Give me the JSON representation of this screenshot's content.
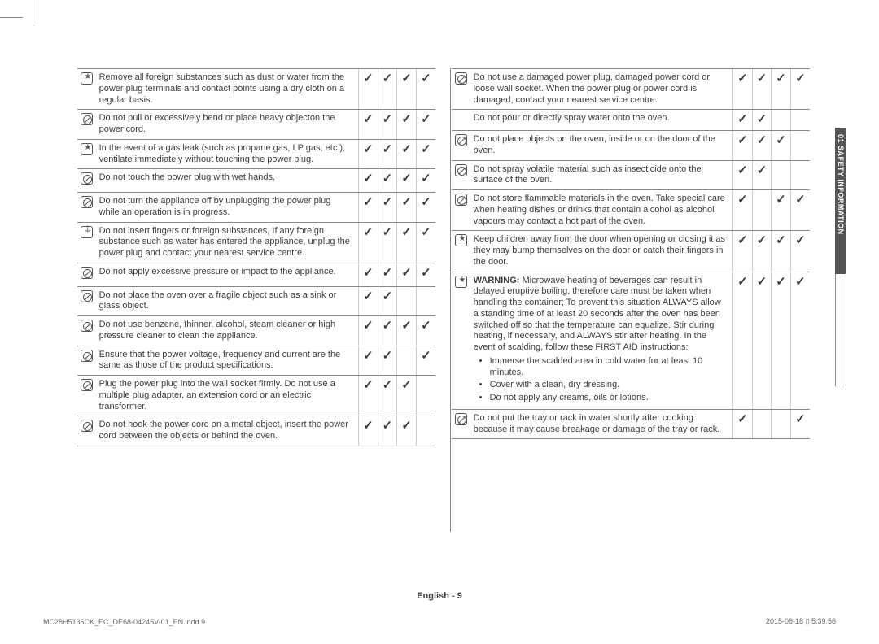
{
  "side_label": "01  SAFETY INFORMATION",
  "page_label": "English - 9",
  "footer_file": "MC28H5135CK_EC_DE68-04245V-01_EN.indd   9",
  "footer_date": "2015-06-18   ▯ 5:39:56",
  "colors": {
    "text": "#3d3d3d",
    "border": "#888888",
    "chk_border": "#cccccc",
    "side_fill": "#555555"
  },
  "fonts": {
    "body_pt": 11,
    "side_pt": 9,
    "footer_pt": 9
  },
  "icons": {
    "star": "star-in-rounded-square",
    "prohibit": "circle-slash-in-rounded-square",
    "plug": "plug-ground-in-rounded-square"
  },
  "left_rows": [
    {
      "icon": "star",
      "text": "Remove all foreign substances such as dust or water from the power plug terminals and contact points using a dry cloth on a regular basis.",
      "checks": [
        true,
        true,
        true,
        true
      ]
    },
    {
      "icon": "prohibit",
      "text": "Do not pull or excessively bend or place heavy objecton the power cord.",
      "checks": [
        true,
        true,
        true,
        true
      ]
    },
    {
      "icon": "star",
      "text": "In the event of a gas leak (such as propane gas, LP gas, etc.), ventilate immediately without touching the power plug.",
      "checks": [
        true,
        true,
        true,
        true
      ]
    },
    {
      "icon": "prohibit",
      "text": "Do not touch the power plug with wet hands.",
      "checks": [
        true,
        true,
        true,
        true
      ]
    },
    {
      "icon": "prohibit",
      "text": "Do not turn the appliance off by unplugging the power plug while an operation is in progress.",
      "checks": [
        true,
        true,
        true,
        true
      ]
    },
    {
      "icon": "plug",
      "text": "Do not insert fingers or foreign substances, If any foreign substance such as water has entered the appliance, unplug the power plug and contact your nearest service centre.",
      "checks": [
        true,
        true,
        true,
        true
      ]
    },
    {
      "icon": "prohibit",
      "text": "Do not apply excessive pressure or impact to the appliance.",
      "checks": [
        true,
        true,
        true,
        true
      ]
    },
    {
      "icon": "prohibit",
      "text": "Do not place the oven over a fragile object such as a sink or glass object.",
      "checks": [
        true,
        true,
        false,
        false
      ]
    },
    {
      "icon": "prohibit",
      "text": "Do not use benzene, thinner, alcohol, steam cleaner or high pressure cleaner to clean the appliance.",
      "checks": [
        true,
        true,
        true,
        true
      ]
    },
    {
      "icon": "prohibit",
      "text": "Ensure that the power voltage, frequency and current are the same as those of the product specifications.",
      "checks": [
        true,
        true,
        false,
        true
      ]
    },
    {
      "icon": "prohibit",
      "text": "Plug the power plug into the wall socket firmly. Do not use a multiple plug adapter, an extension cord or an electric transformer.",
      "checks": [
        true,
        true,
        true,
        false
      ]
    },
    {
      "icon": "prohibit",
      "text": "Do not hook the power cord on a metal object, insert the power cord between the objects or behind the oven.",
      "checks": [
        true,
        true,
        true,
        false
      ]
    }
  ],
  "right_rows": [
    {
      "icon": "prohibit",
      "text": "Do not use a damaged power plug, damaged power cord or loose wall socket. When the power plug or power cord is damaged, contact your nearest service centre.",
      "checks": [
        true,
        true,
        true,
        true
      ]
    },
    {
      "icon": "",
      "text": "Do not pour or directly spray water onto the oven.",
      "checks": [
        true,
        true,
        false,
        false
      ]
    },
    {
      "icon": "prohibit",
      "text": "Do not place objects on the oven, inside or on the door of the oven.",
      "checks": [
        true,
        true,
        true,
        false
      ]
    },
    {
      "icon": "prohibit",
      "text": "Do not spray volatile material such as insecticide onto the surface of the oven.",
      "checks": [
        true,
        true,
        false,
        false
      ]
    },
    {
      "icon": "prohibit",
      "text": "Do not store flammable materials in the oven. Take special care when heating dishes or drinks that contain alcohol as alcohol vapours may contact a hot part of the oven.",
      "checks": [
        true,
        false,
        true,
        true
      ]
    },
    {
      "icon": "star",
      "text": "Keep children away from the door when opening or closing it as they may bump themselves on the door or catch their fingers in the door.",
      "checks": [
        true,
        true,
        true,
        true
      ]
    },
    {
      "icon": "star",
      "html": true,
      "bold": "WARNING:",
      "text": " Microwave heating of beverages can result in delayed eruptive boiling, therefore care must be taken when handling the container; To prevent this situation ALWAYS allow a standing time of at least 20 seconds after the oven has been switched off so that the temperature can equalize. Stir during heating, if necessary, and ALWAYS stir after heating. In the event of scalding, follow these FIRST AID instructions:",
      "bullets": [
        "Immerse the scalded area in cold water for at least 10 minutes.",
        "Cover with a clean, dry dressing.",
        "Do not apply any creams, oils or lotions."
      ],
      "checks": [
        true,
        true,
        true,
        true
      ]
    },
    {
      "icon": "prohibit",
      "text": "Do not put the tray or rack in water shortly after cooking because it may cause breakage or damage of the tray or rack.",
      "checks": [
        true,
        false,
        false,
        true
      ]
    }
  ]
}
